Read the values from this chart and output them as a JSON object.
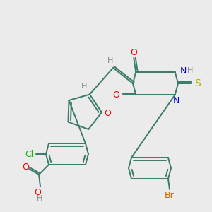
{
  "bg_color": "#ebebeb",
  "bond_color": "#3a7a6a",
  "atom_colors": {
    "O": "#ff0000",
    "N": "#0000cc",
    "S": "#bbaa00",
    "Cl": "#00bb00",
    "Br": "#cc6600",
    "H": "#888888",
    "C": "#3a7a6a"
  },
  "figsize": [
    3.0,
    3.0
  ],
  "dpi": 100
}
